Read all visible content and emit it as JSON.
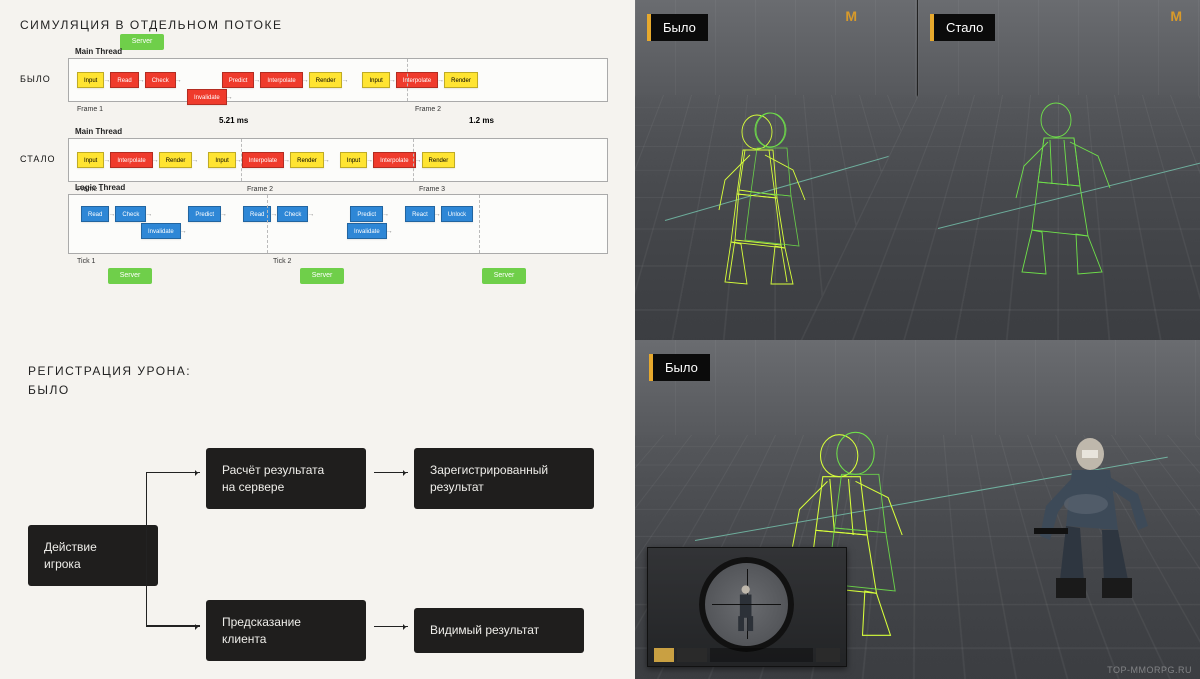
{
  "colors": {
    "background_left": "#f5f3ef",
    "background_right": "#56585c",
    "yellow": "#ffe432",
    "red": "#ef3b2c",
    "blue": "#2e87d6",
    "green": "#6fcf4a",
    "dark_box": "#1f1e1d",
    "orange_accent": "#e7a92d"
  },
  "panel_tl": {
    "title": "СИМУЛЯЦИЯ В ОТДЕЛЬНОМ ПОТОКЕ",
    "server_label": "Server",
    "before": {
      "label": "БЫЛО",
      "thread_title": "Main Thread",
      "frames": [
        "Frame 1",
        "Frame 2"
      ],
      "timings": [
        "5.21 ms",
        "1.2 ms"
      ],
      "blocks_frame1": [
        {
          "t": "Input",
          "c": "yellow"
        },
        {
          "t": "Read",
          "c": "red"
        },
        {
          "t": "Check",
          "c": "red"
        },
        {
          "t": "Invalidate",
          "c": "red"
        },
        {
          "t": "Predict",
          "c": "red"
        },
        {
          "t": "Interpolate",
          "c": "red"
        },
        {
          "t": "Render",
          "c": "yellow"
        }
      ],
      "blocks_frame2": [
        {
          "t": "Input",
          "c": "yellow"
        },
        {
          "t": "Interpolate",
          "c": "red"
        },
        {
          "t": "Render",
          "c": "yellow"
        }
      ]
    },
    "after": {
      "label": "СТАЛО",
      "main_thread_title": "Main Thread",
      "logic_thread_title": "Logic Thread",
      "main_frames": [
        "Frame 1",
        "Frame 2",
        "Frame 3"
      ],
      "main_blocks": [
        {
          "t": "Input",
          "c": "yellow"
        },
        {
          "t": "Interpolate",
          "c": "red"
        },
        {
          "t": "Render",
          "c": "yellow"
        }
      ],
      "logic_blocks": [
        {
          "t": "Read",
          "c": "blue"
        },
        {
          "t": "Check",
          "c": "blue"
        },
        {
          "t": "Invalidate",
          "c": "blue"
        },
        {
          "t": "Predict",
          "c": "blue"
        },
        {
          "t": "React",
          "c": "blue"
        },
        {
          "t": "Unlock",
          "c": "blue"
        }
      ],
      "ticks": [
        "Tick 1",
        "Tick 2"
      ]
    }
  },
  "panel_bl": {
    "title_line1": "РЕГИСТРАЦИЯ УРОНА:",
    "title_line2": "БЫЛО",
    "nodes": {
      "action": "Действие\nигрока",
      "server_calc": "Расчёт результата\nна сервере",
      "registered": "Зарегистрированный\nрезультат",
      "client_pred": "Предсказание\nклиента",
      "visible": "Видимый результат"
    }
  },
  "panel_tr": {
    "left_label": "Было",
    "right_label": "Стало",
    "marker": "M"
  },
  "panel_br": {
    "label": "Было",
    "watermark": "TOP-MMORPG.RU"
  },
  "wireframe": {
    "stroke_primary": "#d8ff3a",
    "stroke_secondary": "#6fe04a",
    "stroke_width": 0.8
  }
}
